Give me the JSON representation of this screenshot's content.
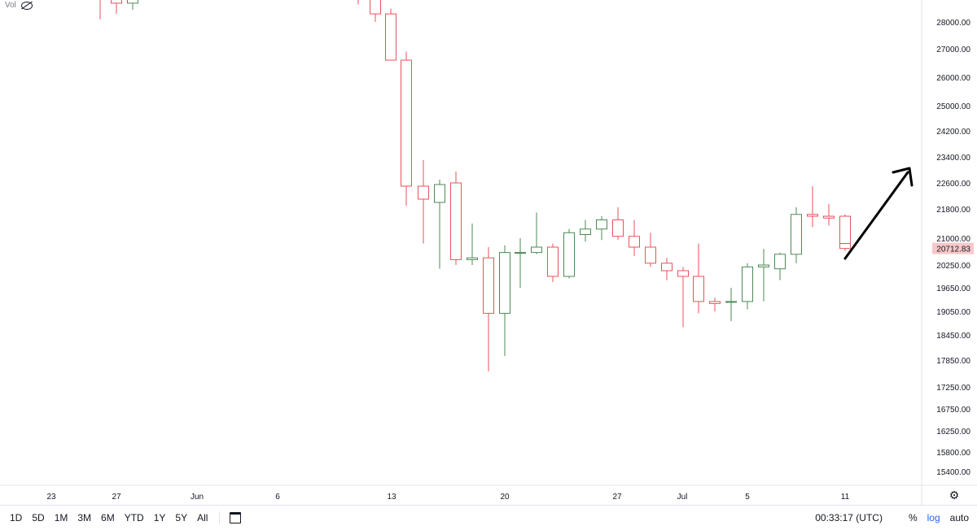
{
  "indicator": {
    "label": "Vol",
    "icon": "eye-slash-icon"
  },
  "chart_data": {
    "type": "candlestick",
    "x_labels": [
      "23",
      "27",
      "Jun",
      "6",
      "13",
      "20",
      "27",
      "Jul",
      "5",
      "11"
    ],
    "y_ticks": [
      "28000.00",
      "27000.00",
      "26000.00",
      "25000.00",
      "24200.00",
      "23400.00",
      "22600.00",
      "21800.00",
      "21000.00",
      "20250.00",
      "19650.00",
      "19050.00",
      "18450.00",
      "17850.00",
      "17250.00",
      "16750.00",
      "16250.00",
      "15800.00",
      "15400.00"
    ],
    "last_price": "20712.83",
    "scale": "log",
    "up_color": "#26a69a",
    "down_color": "#ef5350",
    "candles": [
      {
        "x": "May 26",
        "open": 29350,
        "high": 29900,
        "low": 28100,
        "close": 29000
      },
      {
        "x": "May 27",
        "open": 29000,
        "high": 29500,
        "low": 28300,
        "close": 28700
      },
      {
        "x": "May 28",
        "open": 28700,
        "high": 29350,
        "low": 28450,
        "close": 29100
      },
      {
        "x": "Jun 10",
        "open": 29600,
        "high": 30000,
        "low": 28650,
        "close": 28900
      },
      {
        "x": "Jun 11",
        "open": 28950,
        "high": 29400,
        "low": 28000,
        "close": 28300
      },
      {
        "x": "Jun 12",
        "open": 28300,
        "high": 28500,
        "low": 26600,
        "close": 26600
      },
      {
        "x": "Jun 13",
        "open": 26600,
        "high": 26900,
        "low": 21900,
        "close": 22500
      },
      {
        "x": "Jun 14",
        "open": 22500,
        "high": 23300,
        "low": 20850,
        "close": 22100
      },
      {
        "x": "Jun 15",
        "open": 22000,
        "high": 22700,
        "low": 20150,
        "close": 22550
      },
      {
        "x": "Jun 16",
        "open": 22600,
        "high": 22950,
        "low": 20250,
        "close": 20400
      },
      {
        "x": "Jun 17",
        "open": 20400,
        "high": 21400,
        "low": 20250,
        "close": 20450
      },
      {
        "x": "Jun 18",
        "open": 20450,
        "high": 20750,
        "low": 17600,
        "close": 19000
      },
      {
        "x": "Jun 19",
        "open": 19000,
        "high": 20800,
        "low": 17950,
        "close": 20600
      },
      {
        "x": "Jun 20",
        "open": 20600,
        "high": 21000,
        "low": 19650,
        "close": 20600
      },
      {
        "x": "Jun 21",
        "open": 20600,
        "high": 21700,
        "low": 20550,
        "close": 20750
      },
      {
        "x": "Jun 22",
        "open": 20750,
        "high": 20850,
        "low": 19800,
        "close": 19950
      },
      {
        "x": "Jun 23",
        "open": 19950,
        "high": 21250,
        "low": 19900,
        "close": 21150
      },
      {
        "x": "Jun 24",
        "open": 21100,
        "high": 21500,
        "low": 20900,
        "close": 21250
      },
      {
        "x": "Jun 25",
        "open": 21250,
        "high": 21600,
        "low": 20950,
        "close": 21500
      },
      {
        "x": "Jun 26",
        "open": 21500,
        "high": 21850,
        "low": 20950,
        "close": 21050
      },
      {
        "x": "Jun 27",
        "open": 21050,
        "high": 21500,
        "low": 20500,
        "close": 20750
      },
      {
        "x": "Jun 28",
        "open": 20750,
        "high": 21150,
        "low": 20200,
        "close": 20300
      },
      {
        "x": "Jun 29",
        "open": 20300,
        "high": 20450,
        "low": 19850,
        "close": 20100
      },
      {
        "x": "Jun 30",
        "open": 20100,
        "high": 20200,
        "low": 18650,
        "close": 19950
      },
      {
        "x": "Jul 1",
        "open": 19950,
        "high": 20850,
        "low": 19000,
        "close": 19300
      },
      {
        "x": "Jul 2",
        "open": 19300,
        "high": 19400,
        "low": 19050,
        "close": 19250
      },
      {
        "x": "Jul 3",
        "open": 19280,
        "high": 19650,
        "low": 18800,
        "close": 19300
      },
      {
        "x": "Jul 4",
        "open": 19300,
        "high": 20300,
        "low": 19100,
        "close": 20200
      },
      {
        "x": "Jul 5",
        "open": 20200,
        "high": 20700,
        "low": 19300,
        "close": 20250
      },
      {
        "x": "Jul 6",
        "open": 20150,
        "high": 20600,
        "low": 19850,
        "close": 20550
      },
      {
        "x": "Jul 7",
        "open": 20550,
        "high": 21850,
        "low": 20300,
        "close": 21650
      },
      {
        "x": "Jul 8",
        "open": 21650,
        "high": 22500,
        "low": 21300,
        "close": 21600
      },
      {
        "x": "Jul 9",
        "open": 21600,
        "high": 21950,
        "low": 21350,
        "close": 21550
      },
      {
        "x": "Jul 10",
        "open": 21600,
        "high": 21650,
        "low": 20650,
        "close": 20850
      },
      {
        "x": "Jul 11",
        "open": 20850,
        "high": 20850,
        "low": 20650,
        "close": 20713
      }
    ]
  },
  "bottom_bar": {
    "periods": [
      "1D",
      "5D",
      "1M",
      "3M",
      "6M",
      "YTD",
      "1Y",
      "5Y",
      "All"
    ],
    "clock": "00:33:17 (UTC)",
    "percent": "%",
    "log": "log",
    "auto": "auto"
  }
}
